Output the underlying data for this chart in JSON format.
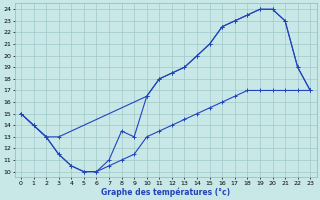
{
  "xlabel": "Graphe des températures (°c)",
  "xlim": [
    -0.5,
    23.5
  ],
  "ylim": [
    9.5,
    24.5
  ],
  "yticks": [
    10,
    11,
    12,
    13,
    14,
    15,
    16,
    17,
    18,
    19,
    20,
    21,
    22,
    23,
    24
  ],
  "xticks": [
    0,
    1,
    2,
    3,
    4,
    5,
    6,
    7,
    8,
    9,
    10,
    11,
    12,
    13,
    14,
    15,
    16,
    17,
    18,
    19,
    20,
    21,
    22,
    23
  ],
  "bg_color": "#c8e8e8",
  "grid_color": "#a0c8c8",
  "line_color": "#2244bb",
  "line1_x": [
    0,
    1,
    2,
    3,
    10,
    11,
    12,
    13,
    14,
    15,
    16,
    17,
    18,
    19,
    20,
    21,
    22,
    23
  ],
  "line1_y": [
    15.0,
    14.0,
    13.0,
    13.0,
    16.5,
    18.0,
    18.5,
    19.0,
    20.0,
    21.0,
    22.5,
    23.0,
    23.5,
    24.0,
    24.0,
    23.0,
    19.0,
    17.0
  ],
  "line2_x": [
    0,
    1,
    2,
    3,
    4,
    5,
    6,
    7,
    8,
    9,
    10,
    11,
    12,
    13,
    14,
    15,
    16,
    17,
    18,
    19,
    20,
    21,
    22,
    23
  ],
  "line2_y": [
    15.0,
    14.0,
    13.0,
    11.5,
    10.5,
    10.0,
    10.0,
    11.0,
    13.5,
    13.0,
    16.5,
    18.0,
    18.5,
    19.0,
    20.0,
    21.0,
    22.5,
    23.0,
    23.5,
    24.0,
    24.0,
    23.0,
    19.0,
    17.0
  ],
  "line3_x": [
    0,
    1,
    2,
    3,
    4,
    5,
    6,
    7,
    8,
    9,
    10,
    11,
    12,
    13,
    14,
    15,
    16,
    17,
    18,
    19,
    20,
    21,
    22,
    23
  ],
  "line3_y": [
    15.0,
    14.0,
    13.0,
    11.5,
    10.5,
    10.0,
    10.0,
    10.5,
    11.0,
    11.5,
    13.0,
    13.5,
    14.0,
    14.5,
    15.0,
    15.5,
    16.0,
    16.5,
    17.0,
    17.0,
    17.0,
    17.0,
    17.0,
    17.0
  ]
}
